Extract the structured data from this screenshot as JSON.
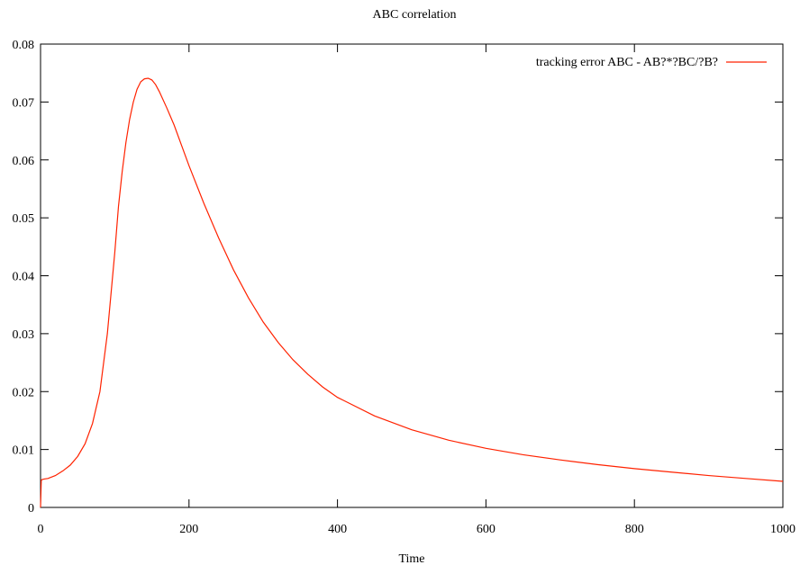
{
  "chart_data": {
    "type": "line",
    "title": "ABC correlation",
    "xlabel": "Time",
    "ylabel": "",
    "xlim": [
      0,
      1000
    ],
    "ylim": [
      0,
      0.08
    ],
    "x_ticks": [
      0,
      200,
      400,
      600,
      800,
      1000
    ],
    "y_ticks": [
      0,
      0.01,
      0.02,
      0.03,
      0.04,
      0.05,
      0.06,
      0.07,
      0.08
    ],
    "x_tick_labels": [
      "0",
      "200",
      "400",
      "600",
      "800",
      "1000"
    ],
    "y_tick_labels": [
      "0",
      "0.01",
      "0.02",
      "0.03",
      "0.04",
      "0.05",
      "0.06",
      "0.07",
      "0.08"
    ],
    "grid": false,
    "legend_position": "top-right",
    "series": [
      {
        "name": "tracking error ABC - AB?*?BC/?B?",
        "color": "#ff2200",
        "x": [
          0,
          1,
          2,
          5,
          10,
          20,
          30,
          40,
          50,
          60,
          70,
          80,
          90,
          100,
          105,
          110,
          115,
          120,
          125,
          130,
          135,
          140,
          145,
          150,
          155,
          160,
          170,
          180,
          190,
          200,
          220,
          240,
          260,
          280,
          300,
          320,
          340,
          360,
          380,
          400,
          450,
          500,
          550,
          600,
          650,
          700,
          750,
          800,
          850,
          900,
          950,
          1000
        ],
        "y": [
          0,
          0.0047,
          0.0048,
          0.0049,
          0.005,
          0.0055,
          0.0063,
          0.0073,
          0.0088,
          0.011,
          0.0145,
          0.02,
          0.03,
          0.044,
          0.052,
          0.058,
          0.063,
          0.067,
          0.07,
          0.0722,
          0.0735,
          0.074,
          0.0741,
          0.0738,
          0.073,
          0.0718,
          0.069,
          0.066,
          0.0625,
          0.059,
          0.0525,
          0.0465,
          0.041,
          0.0362,
          0.032,
          0.0285,
          0.0255,
          0.023,
          0.0208,
          0.019,
          0.0158,
          0.0134,
          0.0116,
          0.0102,
          0.0091,
          0.0082,
          0.0074,
          0.0067,
          0.0061,
          0.0055,
          0.005,
          0.0045
        ]
      }
    ]
  }
}
